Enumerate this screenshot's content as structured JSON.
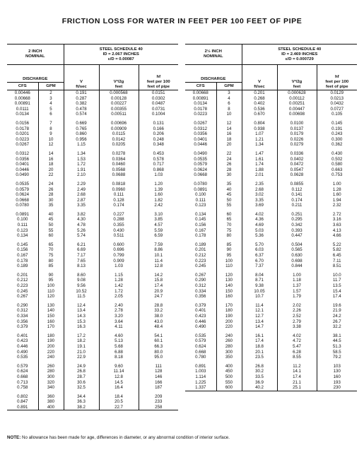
{
  "title": "FRICTION LOSS FOR WATER IN FEET PER 100 FEET OF PIPE",
  "note_label": "NOTE:",
  "note": "No allowance has been made for age, differences in diameter, or any abnormal condition of interior surface.",
  "tables": [
    {
      "nominal": "2 INCH\nNOMINAL",
      "steel": "STEEL SCHEDULE 40\nID = 2.067 INCHES\nε/D = 0.00087",
      "discharge": "DISCHARGE",
      "cfs": "CFS",
      "gpm": "GPM",
      "v": "V\nft/sec",
      "v2g": "V²/2g\nfeet",
      "hf": "hf\nfeet per 100\nfeet of pipe",
      "rows": [
        [
          "0.00446",
          "2",
          "0.191",
          "0.000568",
          "0.0151"
        ],
        [
          "0.00668",
          "3",
          "0.287",
          "0.00128",
          "0.0302"
        ],
        [
          "0.00891",
          "4",
          "0.382",
          "0.00227",
          "0.0487"
        ],
        [
          "0.0111",
          "5",
          "0.478",
          "0.00355",
          "0.0731"
        ],
        [
          "0.0134",
          "6",
          "0.574",
          "0.00511",
          "0.1004"
        ],
        [
          "0.0156",
          "7",
          "0.669",
          "0.00696",
          "0.131"
        ],
        [
          "0.0178",
          "8",
          "0.765",
          "0.00909",
          "0.166"
        ],
        [
          "0.0201",
          "9",
          "0.860",
          "0.0115",
          "0.206"
        ],
        [
          "0.0223",
          "10",
          "0.956",
          "0.0142",
          "0.248"
        ],
        [
          "0.0267",
          "12",
          "1.15",
          "0.0205",
          "0.348"
        ],
        [
          "0.0312",
          "14",
          "1.34",
          "0.0278",
          "0.453"
        ],
        [
          "0.0356",
          "16",
          "1.53",
          "0.0364",
          "0.578"
        ],
        [
          "0.0401",
          "18",
          "1.72",
          "0.0460",
          "0.717"
        ],
        [
          "0.0446",
          "20",
          "1.91",
          "0.0568",
          "0.868"
        ],
        [
          "0.0490",
          "22",
          "2.10",
          "0.0688",
          "1.03"
        ],
        [
          "0.0535",
          "24",
          "2.29",
          "0.0818",
          "1.20"
        ],
        [
          "0.0579",
          "26",
          "2.49",
          "0.0960",
          "1.39"
        ],
        [
          "0.0624",
          "28",
          "2.68",
          "0.111",
          "1.60"
        ],
        [
          "0.0668",
          "30",
          "2.87",
          "0.128",
          "1.82"
        ],
        [
          "0.0780",
          "35",
          "3.35",
          "0.174",
          "2.42"
        ],
        [
          "0.0891",
          "40",
          "3.82",
          "0.227",
          "3.10"
        ],
        [
          "0.100",
          "45",
          "4.30",
          "0.288",
          "3.85"
        ],
        [
          "0.111",
          "50",
          "4.78",
          "0.355",
          "4.57"
        ],
        [
          "0.123",
          "55",
          "5.26",
          "0.430",
          "5.59"
        ],
        [
          "0.134",
          "60",
          "5.74",
          "0.511",
          "6.59"
        ],
        [
          "0.145",
          "65",
          "6.21",
          "0.600",
          "7.59"
        ],
        [
          "0.156",
          "70",
          "6.69",
          "0.696",
          "8.86"
        ],
        [
          "0.167",
          "75",
          "7.17",
          "0.799",
          "10.1"
        ],
        [
          "0.178",
          "80",
          "7.65",
          "0.909",
          "11.4"
        ],
        [
          "0.189",
          "85",
          "8.13",
          "1.03",
          "12.8"
        ],
        [
          "0.201",
          "90",
          "8.60",
          "1.15",
          "14.2"
        ],
        [
          "0.212",
          "95",
          "9.08",
          "1.28",
          "15.8"
        ],
        [
          "0.223",
          "100",
          "9.56",
          "1.42",
          "17.4"
        ],
        [
          "0.245",
          "110",
          "10.52",
          "1.72",
          "20.9"
        ],
        [
          "0.267",
          "120",
          "11.5",
          "2.05",
          "24.7"
        ],
        [
          "0.290",
          "130",
          "12.4",
          "2.40",
          "28.8"
        ],
        [
          "0.312",
          "140",
          "13.4",
          "2.78",
          "33.2"
        ],
        [
          "0.334",
          "150",
          "14.3",
          "3.20",
          "38.0"
        ],
        [
          "0.356",
          "160",
          "15.3",
          "3.64",
          "43.0"
        ],
        [
          "0.379",
          "170",
          "16.3",
          "4.11",
          "48.4"
        ],
        [
          "0.401",
          "180",
          "17.2",
          "4.60",
          "54.1"
        ],
        [
          "0.423",
          "190",
          "18.2",
          "5.13",
          "60.1"
        ],
        [
          "0.446",
          "200",
          "19.1",
          "5.68",
          "66.3"
        ],
        [
          "0.490",
          "220",
          "21.0",
          "6.88",
          "80.0"
        ],
        [
          "0.535",
          "240",
          "22.9",
          "8.18",
          "95.0"
        ],
        [
          "0.579",
          "260",
          "24.9",
          "9.60",
          "111"
        ],
        [
          "0.624",
          "280",
          "26.8",
          "11.14",
          "128"
        ],
        [
          "0.668",
          "300",
          "28.7",
          "12.8",
          "146"
        ],
        [
          "0.713",
          "320",
          "30.6",
          "14.5",
          "166"
        ],
        [
          "0.758",
          "340",
          "32.5",
          "16.4",
          "187"
        ],
        [
          "0.802",
          "360",
          "34.4",
          "18.4",
          "209"
        ],
        [
          "0.847",
          "380",
          "36.3",
          "20.5",
          "233"
        ],
        [
          "0.891",
          "400",
          "38.2",
          "22.7",
          "258"
        ]
      ]
    },
    {
      "nominal": "2½ INCH\nNOMINAL",
      "steel": "STEEL SCHEDULE 40\nID = 2.469 INCHES\nε/D = 0.000729",
      "discharge": "DISCHARGE",
      "cfs": "CFS",
      "gpm": "GPM",
      "v": "V\nft/sec",
      "v2g": "V²/2g\nfeet",
      "hf": "hf\nfeet per 100\nfeet of pipe",
      "rows": [
        [
          "0.00668",
          "3",
          "0.201",
          "0.000628",
          "0.0129"
        ],
        [
          "0.00891",
          "4",
          "0.268",
          "0.00112",
          "0.0213"
        ],
        [
          "0.0134",
          "6",
          "0.402",
          "0.00251",
          "0.0432"
        ],
        [
          "0.0178",
          "8",
          "0.536",
          "0.00447",
          "0.0727"
        ],
        [
          "0.0223",
          "10",
          "0.670",
          "0.00698",
          "0.105"
        ],
        [
          "0.0267",
          "12",
          "0.804",
          "0.0100",
          "0.145"
        ],
        [
          "0.0312",
          "14",
          "0.938",
          "0.0137",
          "0.191"
        ],
        [
          "0.0356",
          "16",
          "1.07",
          "0.0179",
          "0.243"
        ],
        [
          "0.0401",
          "18",
          "1.21",
          "0.0226",
          "0.300"
        ],
        [
          "0.0446",
          "20",
          "1.34",
          "0.0279",
          "0.362"
        ],
        [
          "0.0490",
          "22",
          "1.47",
          "0.0336",
          "0.430"
        ],
        [
          "0.0535",
          "24",
          "1.61",
          "0.0402",
          "0.502"
        ],
        [
          "0.0579",
          "26",
          "1.74",
          "0.0472",
          "0.580"
        ],
        [
          "0.0624",
          "28",
          "1.88",
          "0.0547",
          "0.663"
        ],
        [
          "0.0668",
          "30",
          "2.01",
          "0.0628",
          "0.753"
        ],
        [
          "0.0780",
          "35",
          "2.35",
          "0.0855",
          "1.00"
        ],
        [
          "0.0891",
          "40",
          "2.68",
          "0.112",
          "1.28"
        ],
        [
          "0.100",
          "45",
          "3.02",
          "0.141",
          "1.60"
        ],
        [
          "0.111",
          "50",
          "3.35",
          "0.174",
          "1.94"
        ],
        [
          "0.123",
          "55",
          "3.69",
          "0.211",
          "2.32"
        ],
        [
          "0.134",
          "60",
          "4.02",
          "0.251",
          "2.72"
        ],
        [
          "0.145",
          "65",
          "4.36",
          "0.295",
          "3.16"
        ],
        [
          "0.156",
          "70",
          "4.69",
          "0.342",
          "3.63"
        ],
        [
          "0.167",
          "75",
          "5.03",
          "0.393",
          "4.13"
        ],
        [
          "0.178",
          "80",
          "5.36",
          "0.447",
          "4.66"
        ],
        [
          "0.189",
          "85",
          "5.70",
          "0.504",
          "5.22"
        ],
        [
          "0.201",
          "90",
          "6.03",
          "0.565",
          "5.82"
        ],
        [
          "0.212",
          "95",
          "6.37",
          "0.630",
          "6.45"
        ],
        [
          "0.223",
          "100",
          "6.70",
          "0.698",
          "7.11"
        ],
        [
          "0.245",
          "110",
          "7.37",
          "0.844",
          "8.51"
        ],
        [
          "0.267",
          "120",
          "8.04",
          "1.00",
          "10.0"
        ],
        [
          "0.290",
          "130",
          "8.71",
          "1.18",
          "11.7"
        ],
        [
          "0.312",
          "140",
          "9.38",
          "1.37",
          "13.5"
        ],
        [
          "0.334",
          "150",
          "10.05",
          "1.57",
          "15.4"
        ],
        [
          "0.356",
          "160",
          "10.7",
          "1.79",
          "17.4"
        ],
        [
          "0.379",
          "170",
          "11.4",
          "2.02",
          "19.6"
        ],
        [
          "0.401",
          "180",
          "12.1",
          "2.26",
          "21.9"
        ],
        [
          "0.423",
          "190",
          "12.7",
          "2.52",
          "24.2"
        ],
        [
          "0.446",
          "200",
          "13.4",
          "2.79",
          "26.7"
        ],
        [
          "0.490",
          "220",
          "14.7",
          "3.38",
          "32.2"
        ],
        [
          "0.535",
          "240",
          "16.1",
          "4.02",
          "38.1"
        ],
        [
          "0.579",
          "260",
          "17.4",
          "4.72",
          "44.5"
        ],
        [
          "0.624",
          "280",
          "18.8",
          "5.47",
          "51.3"
        ],
        [
          "0.668",
          "300",
          "20.1",
          "6.28",
          "58.5"
        ],
        [
          "0.780",
          "350",
          "23.5",
          "8.55",
          "79.2"
        ],
        [
          "0.891",
          "400",
          "26.8",
          "11.2",
          "103"
        ],
        [
          "1.003",
          "450",
          "30.2",
          "14.1",
          "130"
        ],
        [
          "1.114",
          "500",
          "33.5",
          "17.4",
          "160"
        ],
        [
          "1.225",
          "550",
          "36.9",
          "21.1",
          "193"
        ],
        [
          "1.337",
          "600",
          "40.2",
          "25.1",
          "230"
        ]
      ]
    }
  ]
}
